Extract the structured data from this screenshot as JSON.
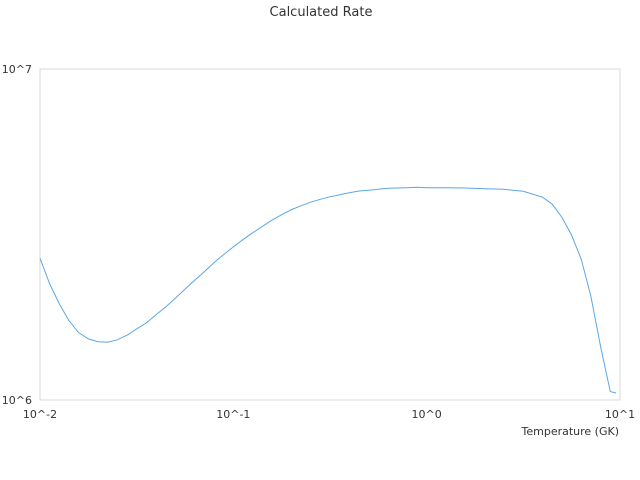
{
  "chart_data": {
    "type": "line",
    "title": "Calculated Rate",
    "xlabel": "Temperature (GK)",
    "ylabel": "",
    "x_scale": "log",
    "y_scale": "log",
    "xlim": [
      0.01,
      10
    ],
    "ylim": [
      1000000,
      10000000
    ],
    "x_tick_values": [
      0.01,
      0.1,
      1,
      10
    ],
    "x_tick_labels": [
      "10^-2",
      "10^-1",
      "10^0",
      "10^1"
    ],
    "y_tick_values": [
      1000000,
      10000000
    ],
    "y_tick_labels": [
      "10^6",
      "10^7"
    ],
    "grid": false,
    "legend": "none",
    "line_color": "#5aa7e6",
    "frame_color": "#d9d9d9",
    "series": [
      {
        "x": [
          0.01,
          0.0112,
          0.0126,
          0.0141,
          0.0158,
          0.0178,
          0.02,
          0.0224,
          0.0251,
          0.0282,
          0.0316,
          0.0355,
          0.0398,
          0.0447,
          0.0501,
          0.0562,
          0.0631,
          0.0708,
          0.0794,
          0.0891,
          0.1,
          0.112,
          0.126,
          0.141,
          0.158,
          0.178,
          0.2,
          0.224,
          0.251,
          0.282,
          0.316,
          0.355,
          0.398,
          0.447,
          0.501,
          0.562,
          0.631,
          0.708,
          0.794,
          0.891,
          1.0,
          1.26,
          1.58,
          2.0,
          2.51,
          3.16,
          3.98,
          4.47,
          5.01,
          5.62,
          6.31,
          7.08,
          7.94,
          8.91,
          9.55
        ],
        "y": [
          2680000,
          2250000,
          1950000,
          1740000,
          1600000,
          1530000,
          1500000,
          1495000,
          1520000,
          1570000,
          1640000,
          1710000,
          1810000,
          1910000,
          2030000,
          2160000,
          2300000,
          2440000,
          2600000,
          2750000,
          2900000,
          3050000,
          3200000,
          3340000,
          3490000,
          3630000,
          3760000,
          3860000,
          3960000,
          4040000,
          4110000,
          4170000,
          4230000,
          4280000,
          4300000,
          4330000,
          4360000,
          4370000,
          4380000,
          4390000,
          4380000,
          4380000,
          4370000,
          4350000,
          4330000,
          4270000,
          4100000,
          3900000,
          3560000,
          3150000,
          2660000,
          2050000,
          1450000,
          1060000,
          1050000
        ]
      }
    ]
  }
}
